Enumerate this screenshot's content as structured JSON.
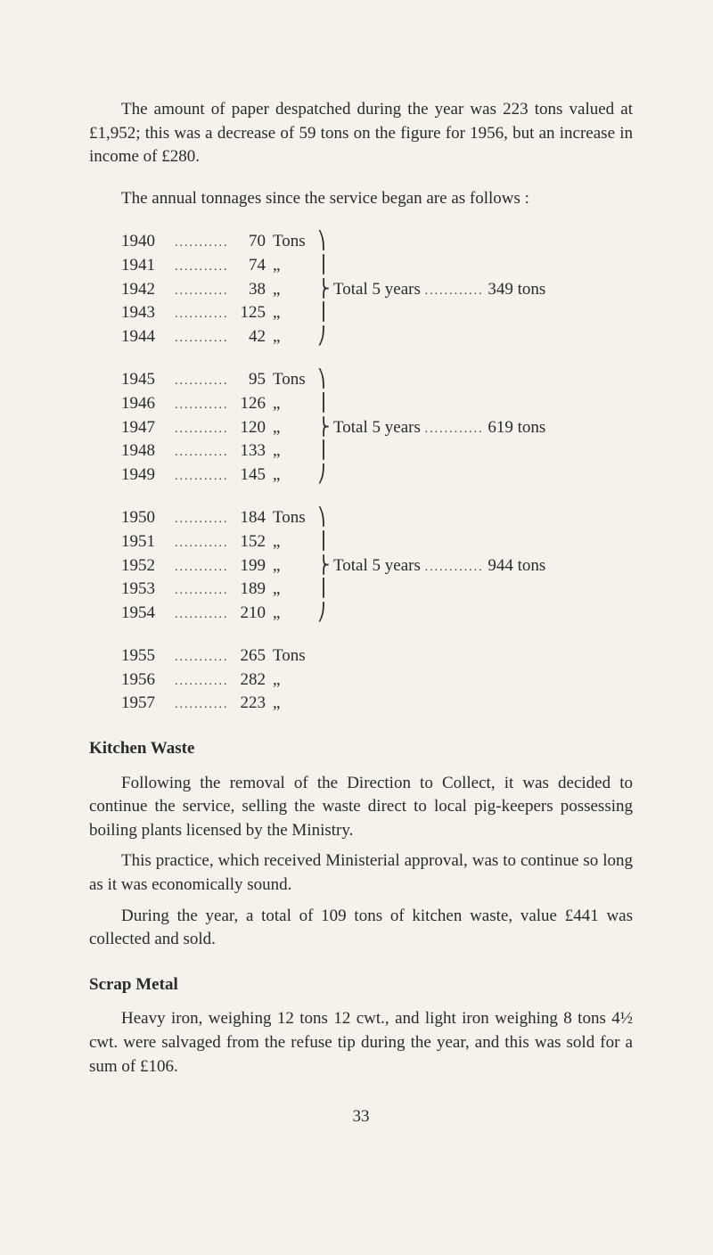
{
  "intro": {
    "para1": "The amount of paper despatched during the year was 223 tons valued at £1,952; this was a decrease of 59 tons on the figure for 1956, but an increase in income of £280.",
    "para2": "The annual tonnages since the service began are as follows :"
  },
  "tonnages": {
    "group1": {
      "rows": [
        {
          "year": "1940",
          "tons": "70",
          "unit": "Tons",
          "brace": "⎞"
        },
        {
          "year": "1941",
          "tons": "74",
          "unit": "„",
          "brace": "⎟"
        },
        {
          "year": "1942",
          "tons": "38",
          "unit": "„",
          "brace": "⎬",
          "total": "Total 5 years",
          "total_val": "349 tons"
        },
        {
          "year": "1943",
          "tons": "125",
          "unit": "„",
          "brace": "⎟"
        },
        {
          "year": "1944",
          "tons": "42",
          "unit": "„",
          "brace": "⎠"
        }
      ]
    },
    "group2": {
      "rows": [
        {
          "year": "1945",
          "tons": "95",
          "unit": "Tons",
          "brace": "⎞"
        },
        {
          "year": "1946",
          "tons": "126",
          "unit": "„",
          "brace": "⎟"
        },
        {
          "year": "1947",
          "tons": "120",
          "unit": "„",
          "brace": "⎬",
          "total": "Total 5 years",
          "total_val": "619 tons"
        },
        {
          "year": "1948",
          "tons": "133",
          "unit": "„",
          "brace": "⎟"
        },
        {
          "year": "1949",
          "tons": "145",
          "unit": "„",
          "brace": "⎠"
        }
      ]
    },
    "group3": {
      "rows": [
        {
          "year": "1950",
          "tons": "184",
          "unit": "Tons",
          "brace": "⎞"
        },
        {
          "year": "1951",
          "tons": "152",
          "unit": "„",
          "brace": "⎟"
        },
        {
          "year": "1952",
          "tons": "199",
          "unit": "„",
          "brace": "⎬",
          "total": "Total 5 years",
          "total_val": "944 tons"
        },
        {
          "year": "1953",
          "tons": "189",
          "unit": "„",
          "brace": "⎟"
        },
        {
          "year": "1954",
          "tons": "210",
          "unit": "„",
          "brace": "⎠"
        }
      ]
    },
    "group4": {
      "rows": [
        {
          "year": "1955",
          "tons": "265",
          "unit": "Tons",
          "brace": ""
        },
        {
          "year": "1956",
          "tons": "282",
          "unit": "„",
          "brace": ""
        },
        {
          "year": "1957",
          "tons": "223",
          "unit": "„",
          "brace": ""
        }
      ]
    }
  },
  "kitchen": {
    "heading": "Kitchen Waste",
    "para1": "Following the removal of the Direction to Collect, it was decided to continue the service, selling the waste direct to local pig-keepers possessing boiling plants licensed by the Ministry.",
    "para2": "This practice, which received Ministerial approval, was to continue so long as it was economically sound.",
    "para3": "During the year, a total of 109 tons of kitchen waste, value £441 was collected and sold."
  },
  "scrap": {
    "heading": "Scrap Metal",
    "para1": "Heavy iron, weighing 12 tons 12 cwt., and light iron weighing 8 tons 4½ cwt. were salvaged from the refuse tip during the year, and this was sold for a sum of £106."
  },
  "page_number": "33",
  "ellipsis": "............"
}
